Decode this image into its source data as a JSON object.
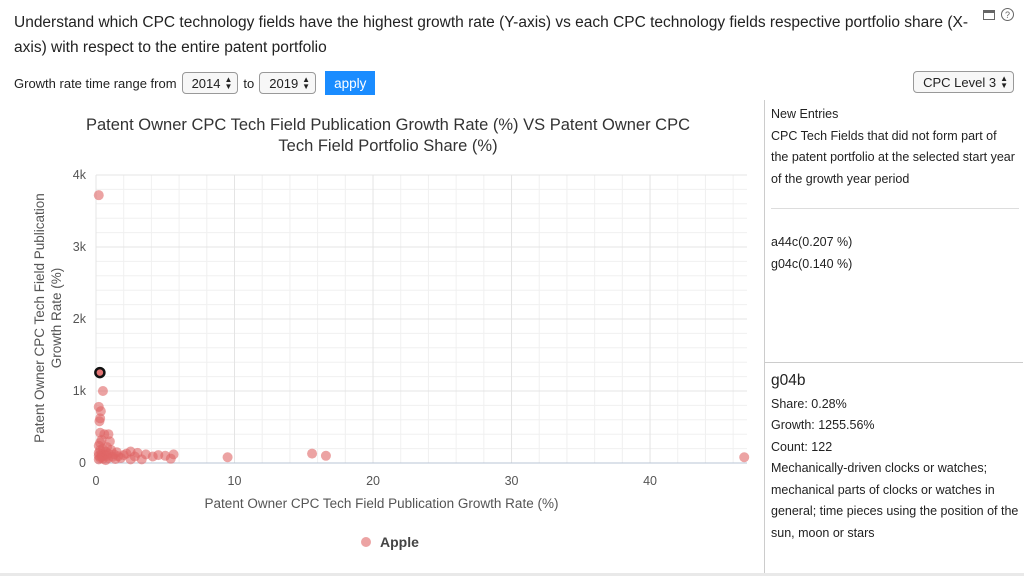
{
  "header": {
    "title": "Understand which CPC technology fields have the highest growth rate (Y-axis) vs each CPC technology fields respective portfolio share (X-axis) with respect to the entire patent portfolio",
    "help_glyph": "?"
  },
  "controls": {
    "range_label": "Growth rate time range from",
    "from_year": "2014",
    "to_label": "to",
    "to_year": "2019",
    "apply_label": "apply",
    "level_value": "CPC Level 3",
    "arrow_up": "▲",
    "arrow_down": "▼"
  },
  "chart_data": {
    "type": "scatter",
    "title_lines": [
      "Patent Owner CPC Tech Field Publication Growth Rate (%) VS Patent Owner CPC",
      "Tech Field Portfolio Share (%)"
    ],
    "xlabel": "Patent Owner CPC Tech Field Publication Growth Rate (%)",
    "ylabel_lines": [
      "Patent Owner CPC Tech Field Publication",
      "Growth Rate (%)"
    ],
    "xlim": [
      0,
      47
    ],
    "ylim": [
      0,
      4000
    ],
    "x_ticks": [
      {
        "value": 0,
        "label": "0"
      },
      {
        "value": 10,
        "label": "10"
      },
      {
        "value": 20,
        "label": "20"
      },
      {
        "value": 30,
        "label": "30"
      },
      {
        "value": 40,
        "label": "40"
      }
    ],
    "y_ticks": [
      {
        "value": 0,
        "label": "0"
      },
      {
        "value": 1000,
        "label": "1k"
      },
      {
        "value": 2000,
        "label": "2k"
      },
      {
        "value": 3000,
        "label": "3k"
      },
      {
        "value": 4000,
        "label": "4k"
      }
    ],
    "grid": true,
    "legend_position": "bottom",
    "series": [
      {
        "name": "Apple",
        "color": "#e06666",
        "points": [
          [
            0.2,
            3720
          ],
          [
            0.28,
            1255.56
          ],
          [
            0.5,
            1000
          ],
          [
            0.3,
            620
          ],
          [
            0.2,
            780
          ],
          [
            0.35,
            720
          ],
          [
            0.25,
            580
          ],
          [
            0.3,
            420
          ],
          [
            0.6,
            400
          ],
          [
            0.9,
            400
          ],
          [
            0.4,
            320
          ],
          [
            1.0,
            300
          ],
          [
            0.3,
            280
          ],
          [
            0.2,
            240
          ],
          [
            0.8,
            220
          ],
          [
            0.5,
            200
          ],
          [
            1.1,
            180
          ],
          [
            0.3,
            180
          ],
          [
            0.7,
            160
          ],
          [
            1.5,
            150
          ],
          [
            0.2,
            140
          ],
          [
            0.9,
            130
          ],
          [
            2.5,
            160
          ],
          [
            3.0,
            140
          ],
          [
            2.2,
            130
          ],
          [
            0.4,
            120
          ],
          [
            1.3,
            120
          ],
          [
            0.6,
            110
          ],
          [
            2.0,
            110
          ],
          [
            3.6,
            120
          ],
          [
            4.5,
            110
          ],
          [
            5.6,
            120
          ],
          [
            5.0,
            100
          ],
          [
            0.2,
            100
          ],
          [
            0.8,
            100
          ],
          [
            1.6,
            95
          ],
          [
            2.8,
            90
          ],
          [
            4.1,
            90
          ],
          [
            0.4,
            85
          ],
          [
            1.2,
            85
          ],
          [
            0.3,
            70
          ],
          [
            0.9,
            70
          ],
          [
            1.8,
            70
          ],
          [
            0.5,
            60
          ],
          [
            1.4,
            55
          ],
          [
            0.2,
            50
          ],
          [
            2.5,
            50
          ],
          [
            3.3,
            50
          ],
          [
            0.7,
            40
          ],
          [
            5.4,
            60
          ],
          [
            9.5,
            80
          ],
          [
            15.6,
            130
          ],
          [
            16.6,
            100
          ],
          [
            46.8,
            80
          ]
        ]
      }
    ],
    "highlight": {
      "x": 0.28,
      "y": 1255.56
    }
  },
  "new_entries": {
    "title": "New Entries",
    "description": "CPC Tech Fields that did not form part of the patent portfolio at the selected start year of the growth year period",
    "items": [
      "a44c(0.207 %)",
      "g04c(0.140 %)"
    ]
  },
  "detail": {
    "name": "g04b",
    "share": "Share: 0.28%",
    "growth": "Growth: 1255.56%",
    "count": "Count: 122",
    "description": "Mechanically-driven clocks or watches; mechanical parts of clocks or watches in general; time pieces using the position of the sun, moon or stars"
  }
}
